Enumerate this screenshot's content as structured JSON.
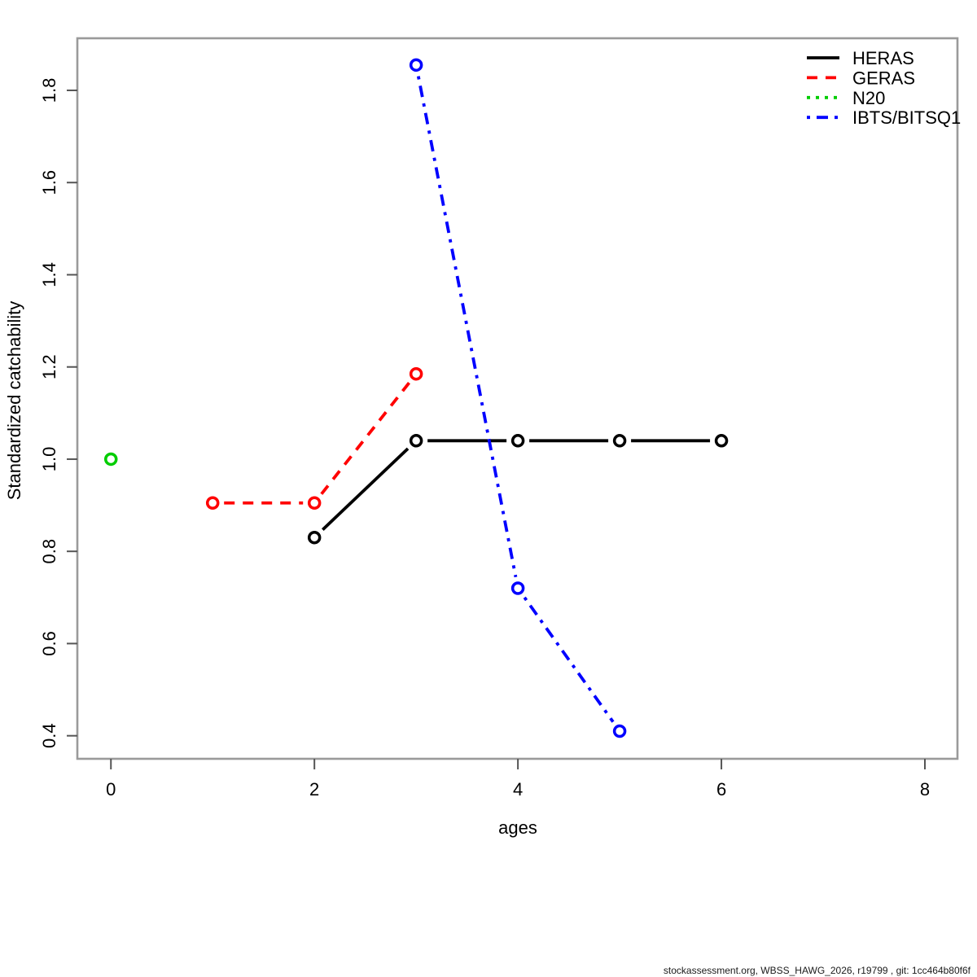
{
  "footer": "stockassessment.org, WBSS_HAWG_2026, r19799 , git: 1cc464b80f6f",
  "chart_data": {
    "type": "line",
    "title": "",
    "xlabel": "ages",
    "ylabel": "Standardized catchability",
    "xlim": [
      -0.33,
      8.32
    ],
    "ylim": [
      0.35,
      1.913
    ],
    "xticks": [
      "0",
      "2",
      "4",
      "6",
      "8"
    ],
    "yticks": [
      "0.4",
      "0.6",
      "0.8",
      "1.0",
      "1.2",
      "1.4",
      "1.6",
      "1.8"
    ],
    "grid": false,
    "legend_position": "top-right",
    "marker": "open-circle",
    "box_color": "#9a9a9a",
    "tick_color": "#555555",
    "series": [
      {
        "name": "HERAS",
        "color": "#000000",
        "linestyle": "solid",
        "x": [
          2,
          3,
          4,
          5,
          6
        ],
        "y": [
          0.83,
          1.04,
          1.04,
          1.04,
          1.04
        ]
      },
      {
        "name": "GERAS",
        "color": "#ff0000",
        "linestyle": "dashed",
        "x": [
          1,
          2,
          3
        ],
        "y": [
          0.905,
          0.905,
          1.185
        ]
      },
      {
        "name": "N20",
        "color": "#00cd00",
        "linestyle": "dotted",
        "x": [
          0
        ],
        "y": [
          1.0
        ]
      },
      {
        "name": "IBTS/BITSQ1",
        "color": "#0000ff",
        "linestyle": "dashdot",
        "x": [
          3,
          4,
          5
        ],
        "y": [
          1.855,
          0.72,
          0.41
        ]
      }
    ]
  }
}
